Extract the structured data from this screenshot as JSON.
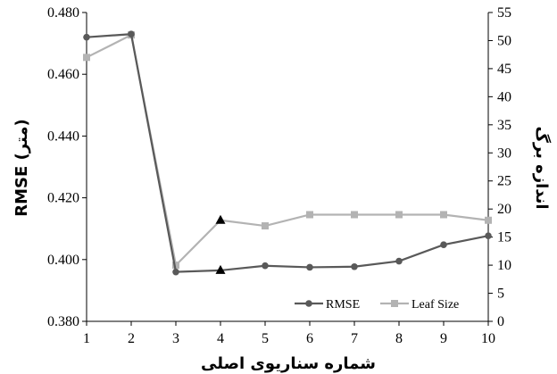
{
  "chart_data": {
    "type": "line",
    "x": [
      1,
      2,
      3,
      4,
      5,
      6,
      7,
      8,
      9,
      10
    ],
    "xlabel": "شماره سناریوی اصلی",
    "ylabel": "RMSE (متر)",
    "y2label": "اندازه برگ",
    "ylim": [
      0.38,
      0.48
    ],
    "y2lim": [
      0,
      55
    ],
    "y_ticks": [
      "0.380",
      "0.400",
      "0.420",
      "0.440",
      "0.460",
      "0.480"
    ],
    "y2_ticks": [
      "0",
      "5",
      "10",
      "15",
      "20",
      "25",
      "30",
      "35",
      "40",
      "45",
      "50",
      "55"
    ],
    "x_ticks": [
      "1",
      "2",
      "3",
      "4",
      "5",
      "6",
      "7",
      "8",
      "9",
      "10"
    ],
    "series": [
      {
        "name": "RMSE",
        "axis": "left",
        "color": "#595959",
        "marker": "circle",
        "values": [
          0.472,
          0.473,
          0.396,
          0.3965,
          0.398,
          0.3975,
          0.3977,
          0.3995,
          0.4048,
          0.4077
        ],
        "highlight_index": 3,
        "highlight_marker": "triangle",
        "highlight_color": "#000000"
      },
      {
        "name": "Leaf Size",
        "axis": "right",
        "color": "#b3b3b3",
        "marker": "square",
        "values": [
          47,
          51,
          10,
          18,
          17,
          19,
          19,
          19,
          19,
          18
        ],
        "highlight_index": 3,
        "highlight_marker": "triangle",
        "highlight_color": "#000000"
      }
    ],
    "legend": {
      "placement": "bottom-right",
      "entries": [
        "RMSE",
        "Leaf Size"
      ]
    },
    "grid": false
  }
}
